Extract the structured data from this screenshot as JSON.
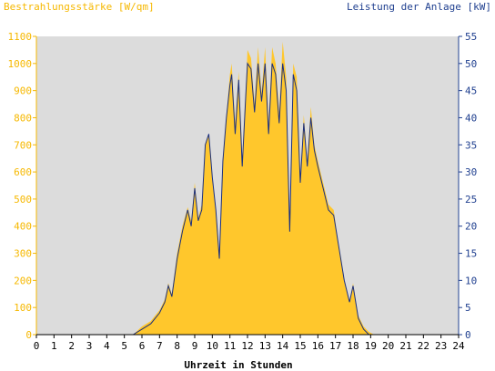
{
  "chart_data": {
    "type": "area",
    "title_left": "Bestrahlungsstärke [W/qm]",
    "title_right": "Leistung der Anlage [kW]",
    "xlabel": "Uhrzeit in Stunden",
    "xlim": [
      0,
      24
    ],
    "x_ticks": [
      0,
      1,
      2,
      3,
      4,
      5,
      6,
      7,
      8,
      9,
      10,
      11,
      12,
      13,
      14,
      15,
      16,
      17,
      18,
      19,
      20,
      21,
      22,
      23,
      24
    ],
    "y_left": {
      "lim": [
        0,
        1100
      ],
      "ticks": [
        0,
        100,
        200,
        300,
        400,
        500,
        600,
        700,
        800,
        900,
        1000,
        1100
      ]
    },
    "y_right": {
      "lim": [
        0,
        55
      ],
      "ticks": [
        0,
        5,
        10,
        15,
        20,
        25,
        30,
        35,
        40,
        45,
        50,
        55
      ]
    },
    "grid": false,
    "colors": {
      "plot_bg": "#dcdcdc",
      "irradiance": "#ffc72c",
      "power": "#1a2f80",
      "left_axis": "#f6b800",
      "right_axis": "#1f3f8f"
    },
    "series": [
      {
        "axis": "left",
        "x": [
          5.5,
          6.0,
          6.5,
          7.0,
          7.3,
          7.5,
          7.7,
          8.0,
          8.3,
          8.6,
          8.8,
          9.0,
          9.2,
          9.4,
          9.6,
          9.8,
          10.0,
          10.2,
          10.4,
          10.6,
          10.8,
          11.0,
          11.1,
          11.3,
          11.5,
          11.7,
          11.9,
          12.0,
          12.2,
          12.4,
          12.6,
          12.8,
          13.0,
          13.2,
          13.4,
          13.6,
          13.8,
          14.0,
          14.2,
          14.4,
          14.6,
          14.8,
          15.0,
          15.2,
          15.4,
          15.6,
          15.8,
          16.0,
          16.3,
          16.6,
          16.9,
          17.2,
          17.5,
          17.8,
          18.0,
          18.3,
          18.6,
          18.9,
          19.2,
          19.5,
          19.8
        ],
        "values": [
          0,
          30,
          50,
          90,
          130,
          190,
          150,
          300,
          400,
          470,
          420,
          560,
          430,
          480,
          700,
          740,
          580,
          470,
          300,
          650,
          810,
          960,
          1000,
          780,
          970,
          650,
          900,
          1050,
          1020,
          850,
          1060,
          890,
          1060,
          780,
          1060,
          1000,
          820,
          1080,
          950,
          390,
          1000,
          950,
          580,
          810,
          640,
          840,
          700,
          640,
          560,
          480,
          460,
          320,
          200,
          120,
          190,
          70,
          30,
          10,
          0,
          0,
          0
        ]
      },
      {
        "axis": "right",
        "x": [
          5.5,
          6.0,
          6.5,
          7.0,
          7.3,
          7.5,
          7.7,
          8.0,
          8.3,
          8.6,
          8.8,
          9.0,
          9.2,
          9.4,
          9.6,
          9.8,
          10.0,
          10.2,
          10.4,
          10.6,
          10.8,
          11.0,
          11.1,
          11.3,
          11.5,
          11.7,
          11.9,
          12.0,
          12.2,
          12.4,
          12.6,
          12.8,
          13.0,
          13.2,
          13.4,
          13.6,
          13.8,
          14.0,
          14.2,
          14.4,
          14.6,
          14.8,
          15.0,
          15.2,
          15.4,
          15.6,
          15.8,
          16.0,
          16.3,
          16.6,
          16.9,
          17.2,
          17.5,
          17.8,
          18.0,
          18.3,
          18.6,
          18.9,
          19.2,
          19.5,
          19.8
        ],
        "values": [
          0,
          1,
          2,
          4,
          6,
          9,
          7,
          14,
          19,
          23,
          20,
          27,
          21,
          23,
          35,
          37,
          29,
          23,
          14,
          32,
          40,
          46,
          48,
          37,
          47,
          31,
          44,
          50,
          49,
          41,
          50,
          43,
          50,
          37,
          50,
          48,
          39,
          50,
          45,
          19,
          48,
          45,
          28,
          39,
          31,
          40,
          34,
          31,
          27,
          23,
          22,
          16,
          10,
          6,
          9,
          3,
          1,
          0,
          0,
          0,
          0
        ]
      }
    ]
  }
}
